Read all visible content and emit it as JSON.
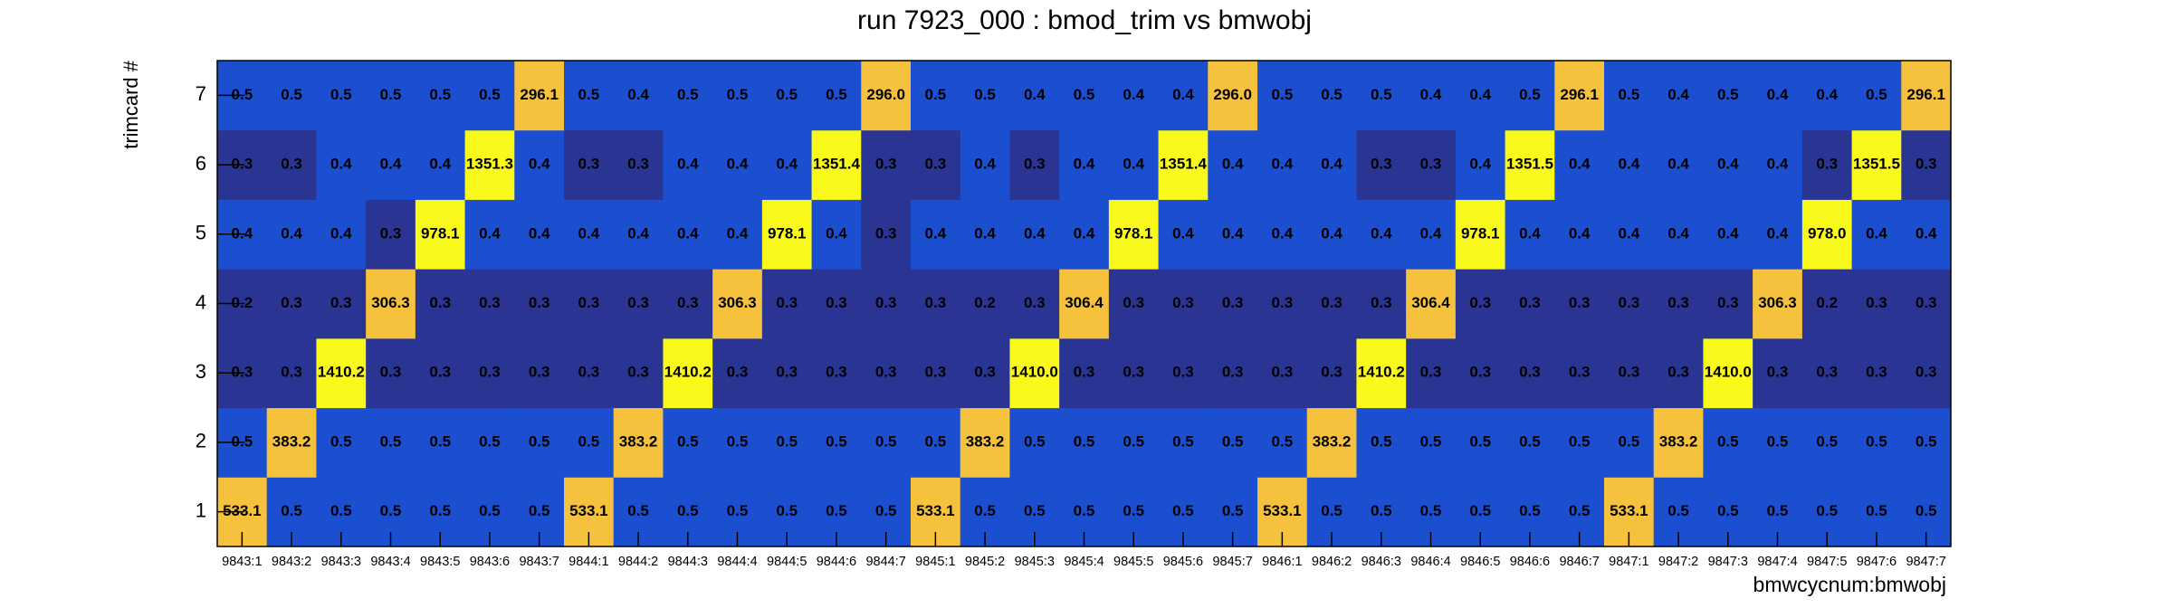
{
  "chart_data": {
    "type": "heatmap",
    "title": "run 7923_000 : bmod_trim vs bmwobj",
    "x_label": "bmwcycnum:bmwobj",
    "y_label": "trimcard #",
    "x": [
      "9843:1",
      "9843:2",
      "9843:3",
      "9843:4",
      "9843:5",
      "9843:6",
      "9843:7",
      "9844:1",
      "9844:2",
      "9844:3",
      "9844:4",
      "9844:5",
      "9844:6",
      "9844:7",
      "9845:1",
      "9845:2",
      "9845:3",
      "9845:4",
      "9845:5",
      "9845:6",
      "9845:7",
      "9846:1",
      "9846:2",
      "9846:3",
      "9846:4",
      "9846:5",
      "9846:6",
      "9846:7",
      "9847:1",
      "9847:2",
      "9847:3",
      "9847:4",
      "9847:5",
      "9847:6",
      "9847:7"
    ],
    "y": [
      "1",
      "2",
      "3",
      "4",
      "5",
      "6",
      "7"
    ],
    "values": [
      [
        533.1,
        0.5,
        0.5,
        0.5,
        0.5,
        0.5,
        0.5,
        533.1,
        0.5,
        0.5,
        0.5,
        0.5,
        0.5,
        0.5,
        533.1,
        0.5,
        0.5,
        0.5,
        0.5,
        0.5,
        0.5,
        533.1,
        0.5,
        0.5,
        0.5,
        0.5,
        0.5,
        0.5,
        533.1,
        0.5,
        0.5,
        0.5,
        0.5,
        0.5,
        0.5
      ],
      [
        0.5,
        383.2,
        0.5,
        0.5,
        0.5,
        0.5,
        0.5,
        0.5,
        383.2,
        0.5,
        0.5,
        0.5,
        0.5,
        0.5,
        0.5,
        383.2,
        0.5,
        0.5,
        0.5,
        0.5,
        0.5,
        0.5,
        383.2,
        0.5,
        0.5,
        0.5,
        0.5,
        0.5,
        0.5,
        383.2,
        0.5,
        0.5,
        0.5,
        0.5,
        0.5
      ],
      [
        0.3,
        0.3,
        1410.2,
        0.3,
        0.3,
        0.3,
        0.3,
        0.3,
        0.3,
        1410.2,
        0.3,
        0.3,
        0.3,
        0.3,
        0.3,
        0.3,
        1410.0,
        0.3,
        0.3,
        0.3,
        0.3,
        0.3,
        0.3,
        1410.2,
        0.3,
        0.3,
        0.3,
        0.3,
        0.3,
        0.3,
        1410.0,
        0.3,
        0.3,
        0.3,
        0.3
      ],
      [
        0.2,
        0.3,
        0.3,
        306.3,
        0.3,
        0.3,
        0.3,
        0.3,
        0.3,
        0.3,
        306.3,
        0.3,
        0.3,
        0.3,
        0.3,
        0.2,
        0.3,
        306.4,
        0.3,
        0.3,
        0.3,
        0.3,
        0.3,
        0.3,
        306.4,
        0.3,
        0.3,
        0.3,
        0.3,
        0.3,
        0.3,
        306.3,
        0.2,
        0.3,
        0.3
      ],
      [
        0.4,
        0.4,
        0.4,
        0.3,
        978.1,
        0.4,
        0.4,
        0.4,
        0.4,
        0.4,
        0.4,
        978.1,
        0.4,
        0.3,
        0.4,
        0.4,
        0.4,
        0.4,
        978.1,
        0.4,
        0.4,
        0.4,
        0.4,
        0.4,
        0.4,
        978.1,
        0.4,
        0.4,
        0.4,
        0.4,
        0.4,
        0.4,
        978.0,
        0.4,
        0.4
      ],
      [
        0.3,
        0.3,
        0.4,
        0.4,
        0.4,
        1351.3,
        0.4,
        0.3,
        0.3,
        0.4,
        0.4,
        0.4,
        1351.4,
        0.3,
        0.3,
        0.4,
        0.3,
        0.4,
        0.4,
        1351.4,
        0.4,
        0.4,
        0.4,
        0.3,
        0.3,
        0.4,
        1351.5,
        0.4,
        0.4,
        0.4,
        0.4,
        0.4,
        0.3,
        1351.5,
        0.3
      ],
      [
        0.5,
        0.5,
        0.5,
        0.5,
        0.5,
        0.5,
        296.1,
        0.5,
        0.4,
        0.5,
        0.5,
        0.5,
        0.5,
        296.0,
        0.5,
        0.5,
        0.4,
        0.5,
        0.4,
        0.4,
        296.0,
        0.5,
        0.5,
        0.5,
        0.4,
        0.4,
        0.5,
        296.1,
        0.5,
        0.4,
        0.5,
        0.4,
        0.4,
        0.5,
        296.1
      ]
    ],
    "value_labels": [
      [
        "533.1",
        "0.5",
        "0.5",
        "0.5",
        "0.5",
        "0.5",
        "0.5",
        "533.1",
        "0.5",
        "0.5",
        "0.5",
        "0.5",
        "0.5",
        "0.5",
        "533.1",
        "0.5",
        "0.5",
        "0.5",
        "0.5",
        "0.5",
        "0.5",
        "533.1",
        "0.5",
        "0.5",
        "0.5",
        "0.5",
        "0.5",
        "0.5",
        "533.1",
        "0.5",
        "0.5",
        "0.5",
        "0.5",
        "0.5",
        "0.5"
      ],
      [
        "0.5",
        "383.2",
        "0.5",
        "0.5",
        "0.5",
        "0.5",
        "0.5",
        "0.5",
        "383.2",
        "0.5",
        "0.5",
        "0.5",
        "0.5",
        "0.5",
        "0.5",
        "383.2",
        "0.5",
        "0.5",
        "0.5",
        "0.5",
        "0.5",
        "0.5",
        "383.2",
        "0.5",
        "0.5",
        "0.5",
        "0.5",
        "0.5",
        "0.5",
        "383.2",
        "0.5",
        "0.5",
        "0.5",
        "0.5",
        "0.5"
      ],
      [
        "0.3",
        "0.3",
        "1410.2",
        "0.3",
        "0.3",
        "0.3",
        "0.3",
        "0.3",
        "0.3",
        "1410.2",
        "0.3",
        "0.3",
        "0.3",
        "0.3",
        "0.3",
        "0.3",
        "1410.0",
        "0.3",
        "0.3",
        "0.3",
        "0.3",
        "0.3",
        "0.3",
        "1410.2",
        "0.3",
        "0.3",
        "0.3",
        "0.3",
        "0.3",
        "0.3",
        "1410.0",
        "0.3",
        "0.3",
        "0.3",
        "0.3"
      ],
      [
        "0.2",
        "0.3",
        "0.3",
        "306.3",
        "0.3",
        "0.3",
        "0.3",
        "0.3",
        "0.3",
        "0.3",
        "306.3",
        "0.3",
        "0.3",
        "0.3",
        "0.3",
        "0.2",
        "0.3",
        "306.4",
        "0.3",
        "0.3",
        "0.3",
        "0.3",
        "0.3",
        "0.3",
        "306.4",
        "0.3",
        "0.3",
        "0.3",
        "0.3",
        "0.3",
        "0.3",
        "306.3",
        "0.2",
        "0.3",
        "0.3"
      ],
      [
        "0.4",
        "0.4",
        "0.4",
        "0.3",
        "978.1",
        "0.4",
        "0.4",
        "0.4",
        "0.4",
        "0.4",
        "0.4",
        "978.1",
        "0.4",
        "0.3",
        "0.4",
        "0.4",
        "0.4",
        "0.4",
        "978.1",
        "0.4",
        "0.4",
        "0.4",
        "0.4",
        "0.4",
        "0.4",
        "978.1",
        "0.4",
        "0.4",
        "0.4",
        "0.4",
        "0.4",
        "0.4",
        "978.0",
        "0.4",
        "0.4"
      ],
      [
        "0.3",
        "0.3",
        "0.4",
        "0.4",
        "0.4",
        "1351.3",
        "0.4",
        "0.3",
        "0.3",
        "0.4",
        "0.4",
        "0.4",
        "1351.4",
        "0.3",
        "0.3",
        "0.4",
        "0.3",
        "0.4",
        "0.4",
        "1351.4",
        "0.4",
        "0.4",
        "0.4",
        "0.3",
        "0.3",
        "0.4",
        "1351.5",
        "0.4",
        "0.4",
        "0.4",
        "0.4",
        "0.4",
        "0.3",
        "1351.5",
        "0.3"
      ],
      [
        "0.5",
        "0.5",
        "0.5",
        "0.5",
        "0.5",
        "0.5",
        "296.1",
        "0.5",
        "0.4",
        "0.5",
        "0.5",
        "0.5",
        "0.5",
        "296.0",
        "0.5",
        "0.5",
        "0.4",
        "0.5",
        "0.4",
        "0.4",
        "296.0",
        "0.5",
        "0.5",
        "0.5",
        "0.4",
        "0.4",
        "0.5",
        "296.1",
        "0.5",
        "0.4",
        "0.5",
        "0.4",
        "0.4",
        "0.5",
        "296.1"
      ]
    ],
    "log_color": true,
    "palette": [
      "#2a3593",
      "#1b4fcf",
      "#1f72c9",
      "#2a92b8",
      "#3aa99a",
      "#5fb97a",
      "#8cc05a",
      "#b6c445",
      "#d9c33b",
      "#efc13c",
      "#f6c23d",
      "#f6c23d",
      "#f9f91c"
    ]
  }
}
